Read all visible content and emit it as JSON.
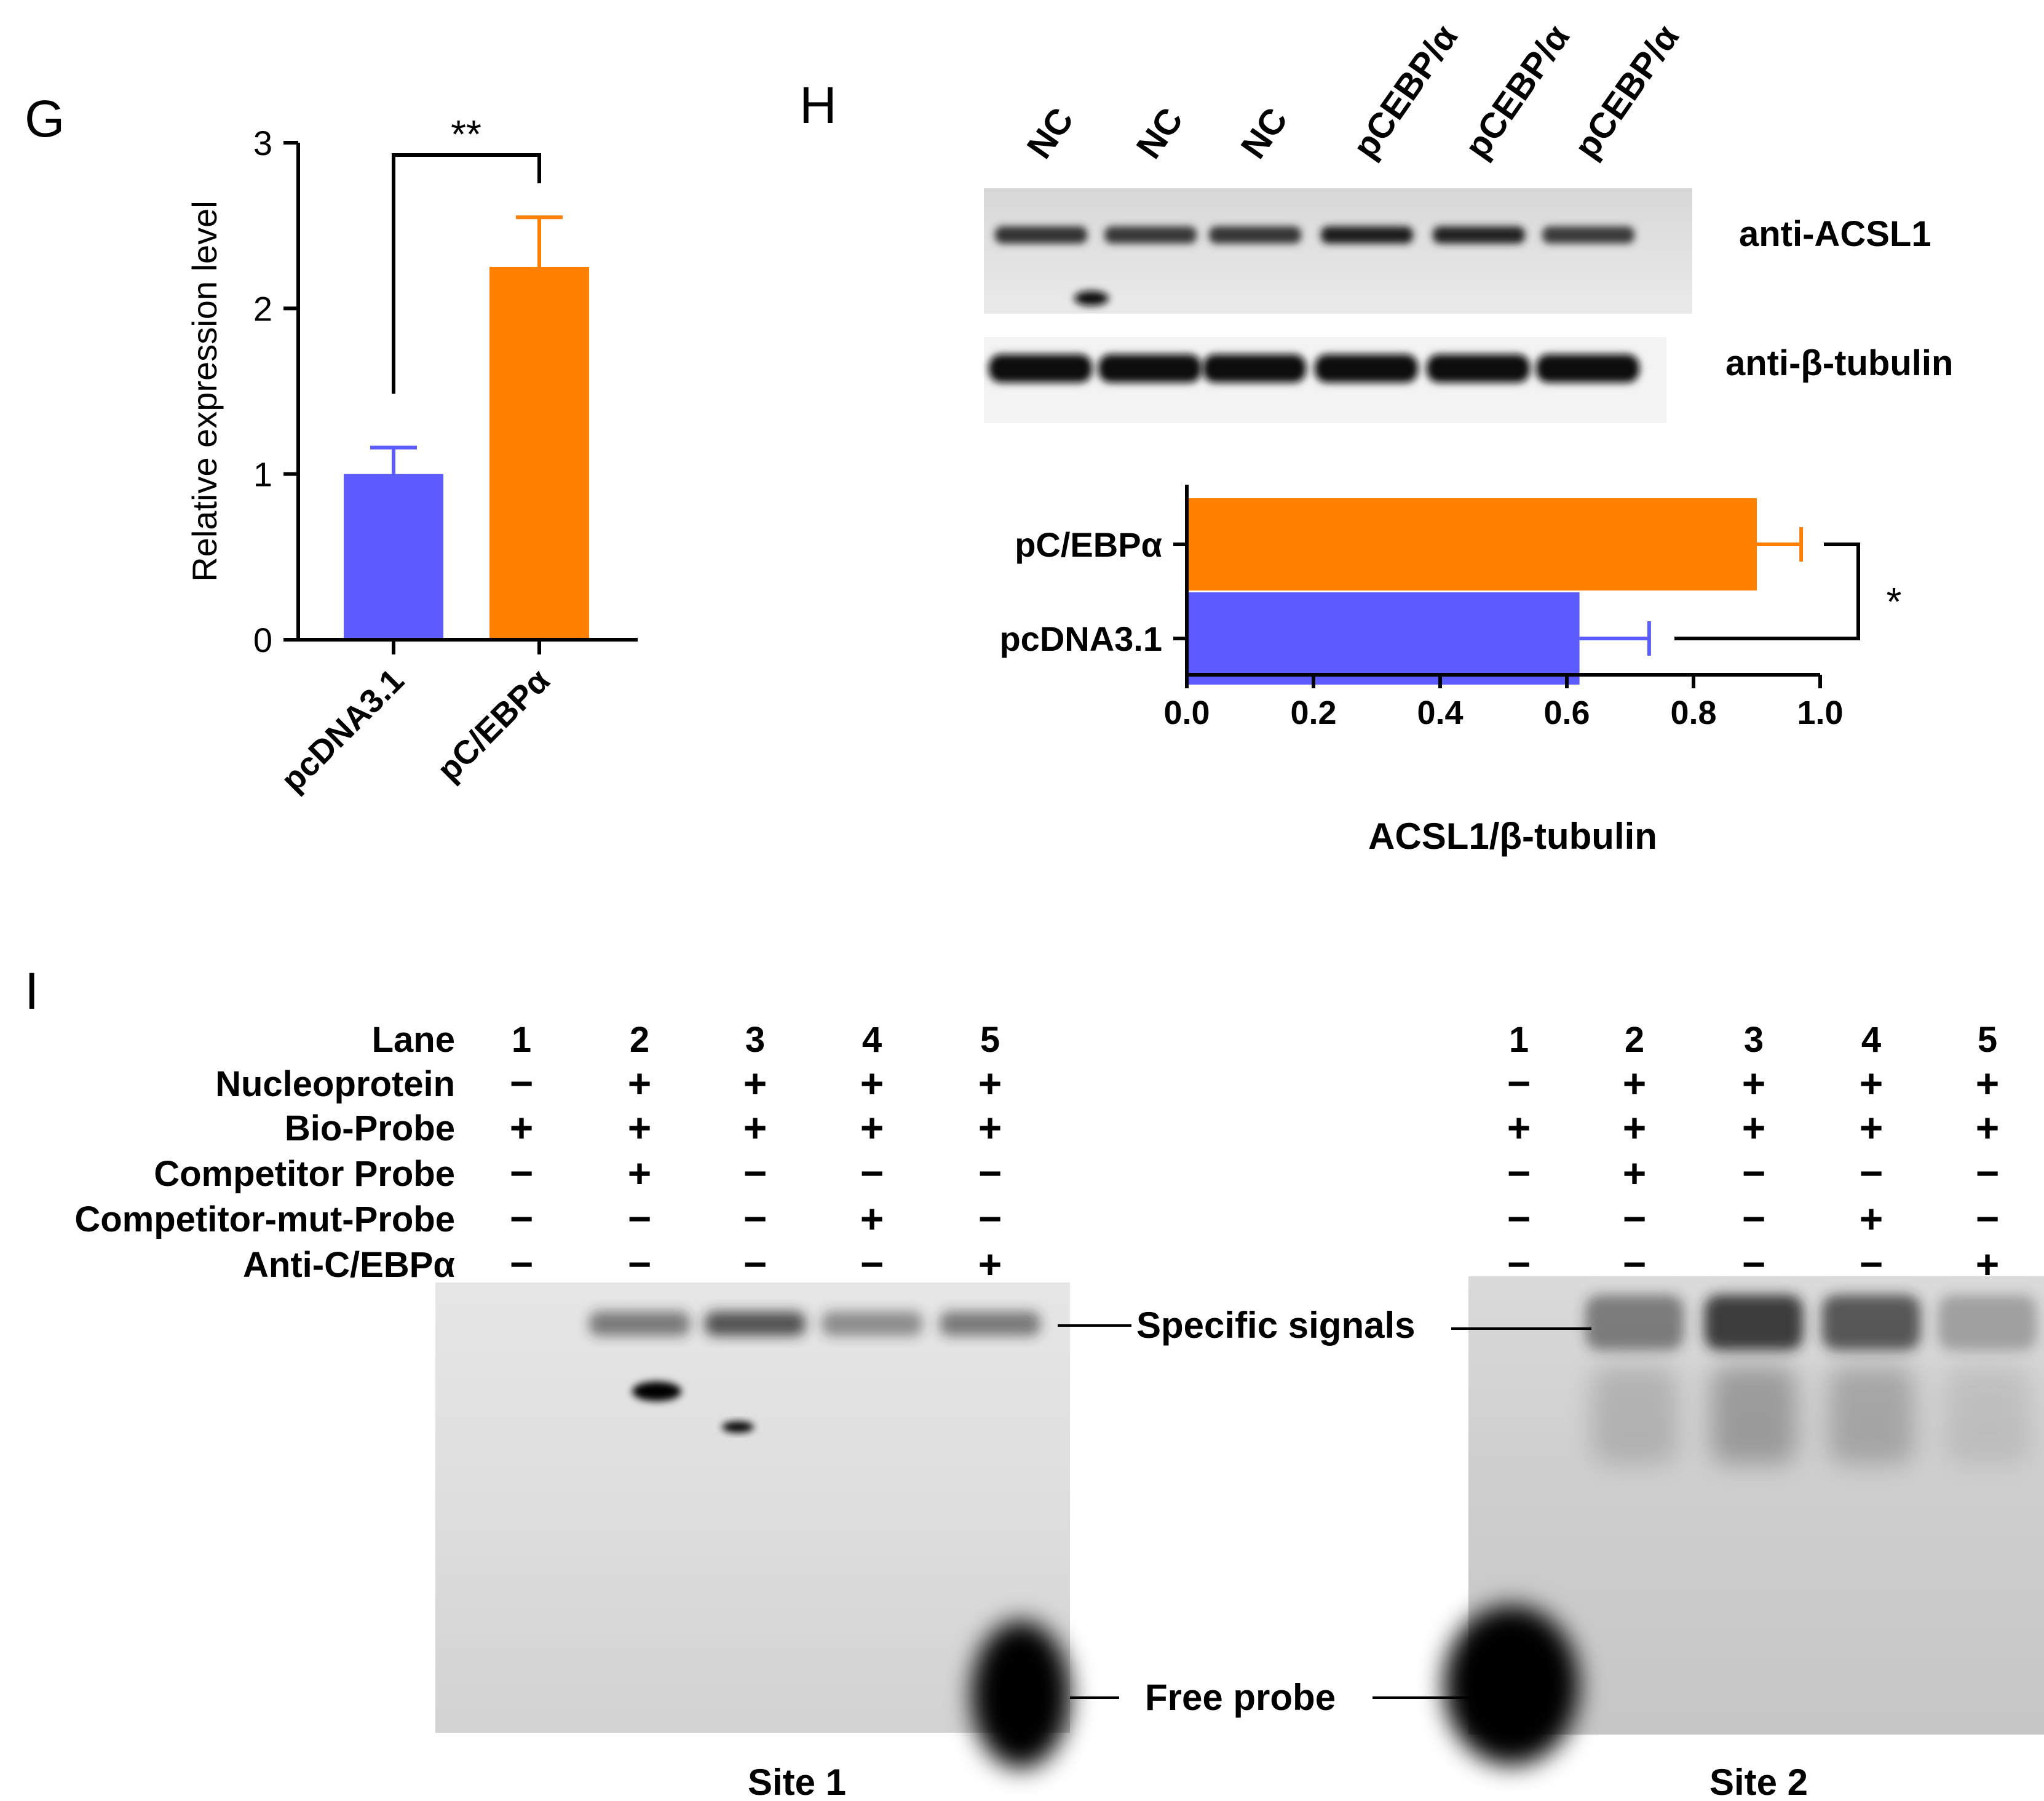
{
  "panels": {
    "g": {
      "label": "G"
    },
    "h": {
      "label": "H"
    },
    "i": {
      "label": "I"
    }
  },
  "colors": {
    "blue": "#5b5bff",
    "orange": "#ff8000",
    "axis": "#000000"
  },
  "chart_data": [
    {
      "panel": "G",
      "type": "bar",
      "categories": [
        "pcDNA3.1",
        "pC/EBPα"
      ],
      "values": [
        1.0,
        2.25
      ],
      "errors": [
        0.16,
        0.3
      ],
      "colors": [
        "#5b5bff",
        "#ff8000"
      ],
      "ylabel": "Relative expression level",
      "ylim": [
        0,
        3
      ],
      "yticks": [
        "0",
        "1",
        "2",
        "3"
      ],
      "significance": "**",
      "grid": false
    },
    {
      "panel": "H",
      "type": "bar",
      "orientation": "horizontal",
      "categories": [
        "pC/EBPα",
        "pcDNA3.1"
      ],
      "values": [
        0.9,
        0.62
      ],
      "errors": [
        0.07,
        0.11
      ],
      "colors": [
        "#ff8000",
        "#5b5bff"
      ],
      "xlabel": "ACSL1/β-tubulin",
      "xlim": [
        0,
        1.0
      ],
      "xticks": [
        "0.0",
        "0.2",
        "0.4",
        "0.6",
        "0.8",
        "1.0"
      ],
      "significance": "*",
      "grid": false
    }
  ],
  "western": {
    "lanes": [
      "NC",
      "NC",
      "NC",
      "pCEBP/α",
      "pCEBP/α",
      "pCEBP/α"
    ],
    "labels": [
      "anti-ACSL1",
      "anti-β-tubulin"
    ],
    "acsl1_intensity": [
      0.75,
      0.7,
      0.72,
      0.95,
      0.9,
      0.68
    ]
  },
  "emsa": {
    "row_labels": [
      "Lane",
      "Nucleoprotein",
      "Bio-Probe",
      "Competitor Probe",
      "Competitor-mut-Probe",
      "Anti-C/EBPα"
    ],
    "lane_numbers": [
      "1",
      "2",
      "3",
      "4",
      "5"
    ],
    "rows": [
      [
        "−",
        "+",
        "+",
        "+",
        "+"
      ],
      [
        "+",
        "+",
        "+",
        "+",
        "+"
      ],
      [
        "−",
        "+",
        "−",
        "−",
        "−"
      ],
      [
        "−",
        "−",
        "−",
        "+",
        "−"
      ],
      [
        "−",
        "−",
        "−",
        "−",
        "+"
      ]
    ],
    "specific_label": "Specific signals",
    "free_label": "Free probe",
    "site1_label": "Site 1",
    "site2_label": "Site 2"
  }
}
